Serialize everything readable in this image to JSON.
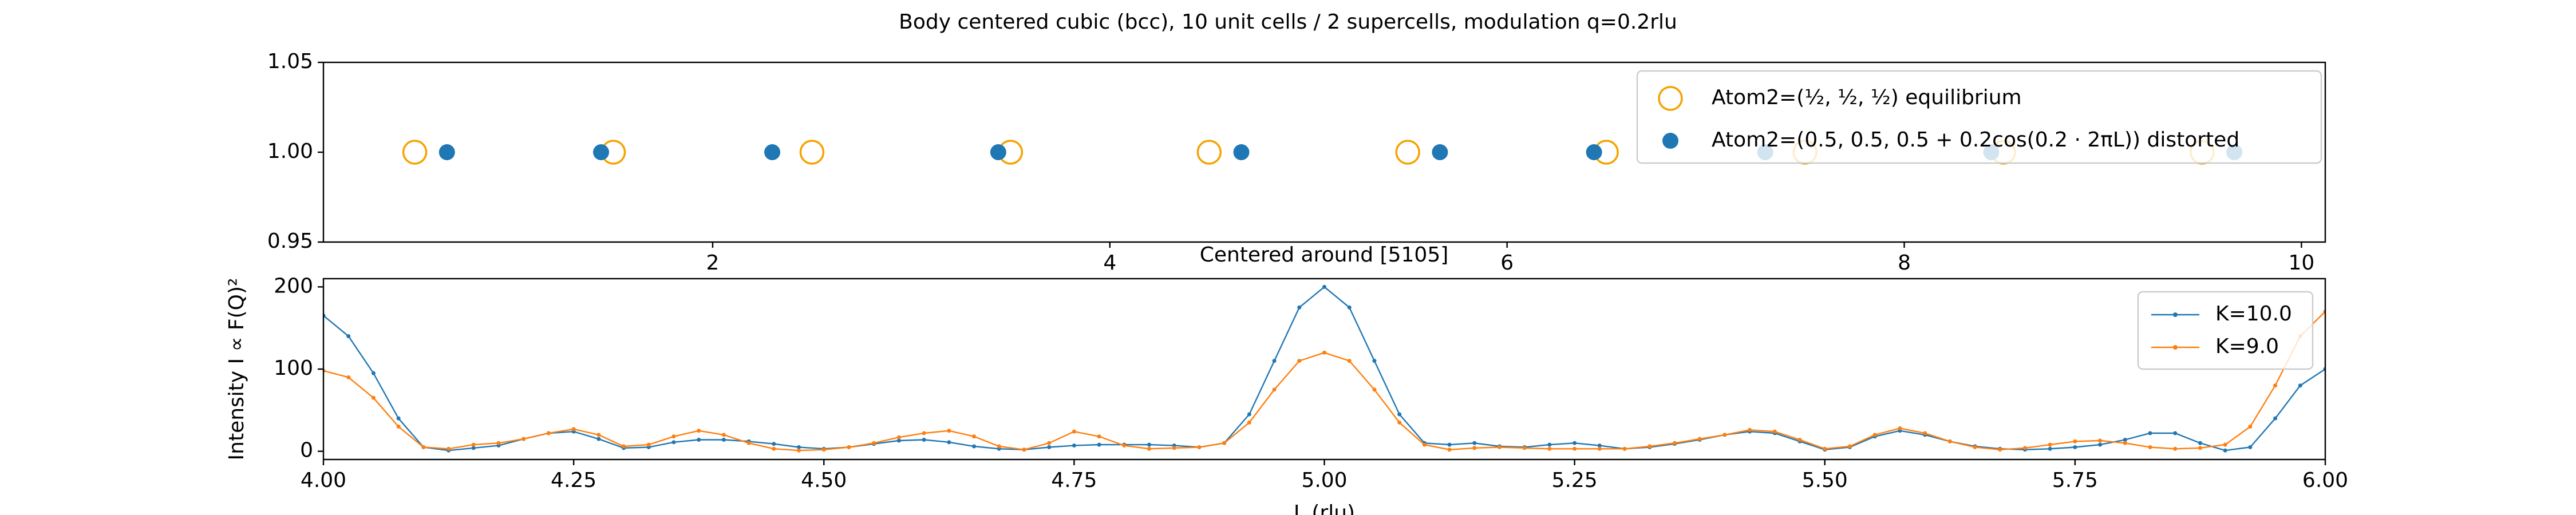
{
  "chart_data": [
    {
      "type": "scatter",
      "title": "Body centered cubic (bcc), 10 unit cells / 2 supercells, modulation q=0.2rlu",
      "xlim": [
        0.04,
        10.12
      ],
      "ylim": [
        0.95,
        1.05
      ],
      "xticks": [
        2,
        4,
        6,
        8,
        10
      ],
      "yticks": [
        {
          "value": 0.95,
          "label": "0.95"
        },
        {
          "value": 1.0,
          "label": "1.00"
        },
        {
          "value": 1.05,
          "label": "1.05"
        }
      ],
      "legend": "upper right",
      "series": [
        {
          "name": "Atom2=(½, ½, ½) equilibrium",
          "color": "#f5a300",
          "marker": "open-circle",
          "x": [
            0.5,
            1.5,
            2.5,
            3.5,
            4.5,
            5.5,
            6.5,
            7.5,
            8.5,
            9.5
          ],
          "values": [
            1,
            1,
            1,
            1,
            1,
            1,
            1,
            1,
            1,
            1
          ]
        },
        {
          "name": "Atom2=(0.5, 0.5, 0.5 + 0.2cos(0.2 · 2πL)) distorted",
          "color": "#1f77b4",
          "marker": "dot",
          "x": [
            0.662,
            1.438,
            2.3,
            3.438,
            4.662,
            5.662,
            6.438,
            7.3,
            8.438,
            9.662
          ],
          "values": [
            1,
            1,
            1,
            1,
            1,
            1,
            1,
            1,
            1,
            1
          ]
        }
      ]
    },
    {
      "type": "line",
      "title": "Centered around [5105]",
      "xlabel": "L (rlu)",
      "ylabel": "Intensity I ∝ F(Q)²",
      "xlim": [
        4,
        6
      ],
      "ylim": [
        -10,
        210
      ],
      "xticks": [
        {
          "value": 4,
          "label": "4.00"
        },
        {
          "value": 4.25,
          "label": "4.25"
        },
        {
          "value": 4.5,
          "label": "4.50"
        },
        {
          "value": 4.75,
          "label": "4.75"
        },
        {
          "value": 5,
          "label": "5.00"
        },
        {
          "value": 5.25,
          "label": "5.25"
        },
        {
          "value": 5.5,
          "label": "5.50"
        },
        {
          "value": 5.75,
          "label": "5.75"
        },
        {
          "value": 6,
          "label": "6.00"
        }
      ],
      "yticks": [
        0,
        100,
        200
      ],
      "legend": "upper right",
      "x": [
        4,
        4.025,
        4.05,
        4.075,
        4.1,
        4.125,
        4.15,
        4.175,
        4.2,
        4.225,
        4.25,
        4.275,
        4.3,
        4.325,
        4.35,
        4.375,
        4.4,
        4.425,
        4.45,
        4.475,
        4.5,
        4.525,
        4.55,
        4.575,
        4.6,
        4.625,
        4.65,
        4.675,
        4.7,
        4.725,
        4.75,
        4.775,
        4.8,
        4.825,
        4.85,
        4.875,
        4.9,
        4.925,
        4.95,
        4.975,
        5,
        5.025,
        5.05,
        5.075,
        5.1,
        5.125,
        5.15,
        5.175,
        5.2,
        5.225,
        5.25,
        5.275,
        5.3,
        5.325,
        5.35,
        5.375,
        5.4,
        5.425,
        5.45,
        5.475,
        5.5,
        5.525,
        5.55,
        5.575,
        5.6,
        5.625,
        5.65,
        5.675,
        5.7,
        5.725,
        5.75,
        5.775,
        5.8,
        5.825,
        5.85,
        5.875,
        5.9,
        5.925,
        5.95,
        5.975,
        6
      ],
      "series": [
        {
          "name": "K=10.0",
          "color": "#1f77b4",
          "marker": "dot",
          "values": [
            165,
            140,
            95,
            40,
            5,
            1,
            4,
            7,
            15,
            22,
            24,
            15,
            4,
            5,
            11,
            14,
            14,
            12,
            9,
            5,
            3,
            5,
            9,
            13,
            14,
            11,
            6,
            3,
            2,
            5,
            7,
            8,
            8,
            8,
            7,
            5,
            10,
            45,
            110,
            175,
            200,
            175,
            110,
            45,
            10,
            8,
            10,
            6,
            5,
            8,
            10,
            7,
            3,
            5,
            9,
            14,
            20,
            24,
            22,
            12,
            2,
            5,
            18,
            25,
            20,
            12,
            6,
            3,
            2,
            3,
            5,
            8,
            14,
            22,
            22,
            10,
            1,
            5,
            40,
            80,
            100
          ]
        },
        {
          "name": "K=9.0",
          "color": "#ff7f0e",
          "marker": "dot",
          "values": [
            98,
            90,
            65,
            30,
            5,
            3,
            8,
            10,
            15,
            22,
            27,
            20,
            6,
            8,
            18,
            25,
            20,
            10,
            3,
            1,
            2,
            5,
            10,
            17,
            22,
            25,
            18,
            6,
            2,
            10,
            24,
            18,
            7,
            3,
            4,
            5,
            10,
            35,
            75,
            110,
            120,
            110,
            75,
            35,
            8,
            2,
            4,
            5,
            4,
            3,
            3,
            3,
            3,
            6,
            10,
            15,
            20,
            26,
            24,
            14,
            3,
            6,
            20,
            28,
            22,
            12,
            5,
            2,
            4,
            8,
            12,
            13,
            10,
            5,
            3,
            4,
            8,
            30,
            80,
            140,
            170
          ]
        }
      ]
    }
  ]
}
